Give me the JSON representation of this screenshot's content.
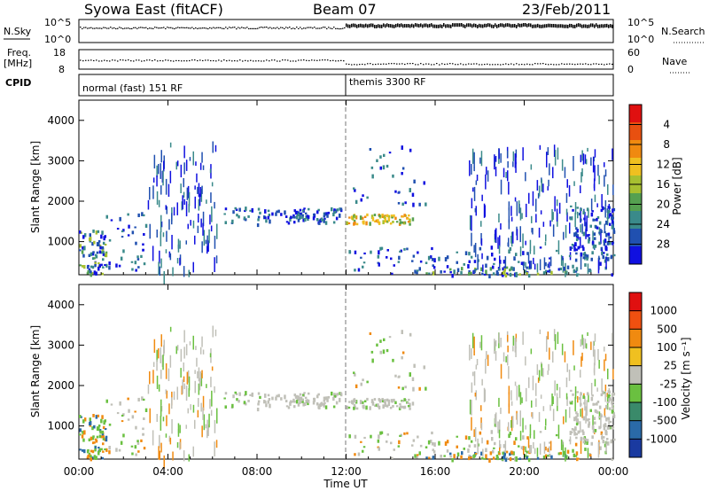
{
  "header": {
    "title": "Syowa East (fitACF)",
    "beam": "Beam 07",
    "date": "23/Feb/2011"
  },
  "strips": {
    "nsky": {
      "label": "N.Sky",
      "ticks": [
        "10^5",
        "10^0"
      ]
    },
    "nsearch": {
      "label": "N.Search",
      "ticks": [
        "10^5",
        "10^0"
      ]
    },
    "freq": {
      "label_line1": "Freq.",
      "label_line2": "[MHz]",
      "ticks": [
        "18",
        "8"
      ]
    },
    "nave": {
      "label": "Nave",
      "ticks": [
        "60",
        "0"
      ]
    },
    "cpid": {
      "label": "CPID",
      "segments": [
        {
          "name": "normal (fast) 151 RF",
          "start_hour": 0,
          "end_hour": 12
        },
        {
          "name": "themis 3300 RF",
          "start_hour": 12,
          "end_hour": 24
        }
      ]
    }
  },
  "axes": {
    "xlabel": "Time UT",
    "xtick_labels": [
      "00:00",
      "04:00",
      "08:00",
      "12:00",
      "16:00",
      "20:00",
      "00:00"
    ],
    "ylabel": "Slant Range [km]",
    "ytick_labels": [
      "1000",
      "2000",
      "3000",
      "4000"
    ]
  },
  "chart_data": [
    {
      "type": "heatmap",
      "title": "Power",
      "ylabel": "Slant Range [km]",
      "xlabel": "",
      "colorbar": {
        "label": "Power [dB]",
        "range": [
          0,
          32
        ],
        "ticks": [
          "4",
          "8",
          "12",
          "16",
          "20",
          "24",
          "28"
        ],
        "colors": [
          "#1010e0",
          "#2050b0",
          "#3a8a8a",
          "#55a050",
          "#a8c030",
          "#f0c020",
          "#f08a10",
          "#e85010",
          "#e01010"
        ]
      },
      "x_range_hours": [
        0,
        24
      ],
      "y_range_km": [
        180,
        4500
      ],
      "grid": false
    },
    {
      "type": "heatmap",
      "title": "Velocity",
      "ylabel": "Slant Range [km]",
      "xlabel": "Time UT",
      "colorbar": {
        "label": "Velocity [m s⁻¹]",
        "range": [
          -1250,
          1250
        ],
        "ticks": [
          "1000",
          "500",
          "100",
          "25",
          "-25",
          "-100",
          "-500",
          "-1000"
        ],
        "colors": [
          "#1a3aa0",
          "#2a6aa8",
          "#3a8a6a",
          "#6ac040",
          "#c0c0b8",
          "#f0c020",
          "#f08a10",
          "#f05010",
          "#e01010"
        ]
      },
      "x_range_hours": [
        0,
        24
      ],
      "y_range_km": [
        180,
        4500
      ],
      "grid": false
    }
  ]
}
